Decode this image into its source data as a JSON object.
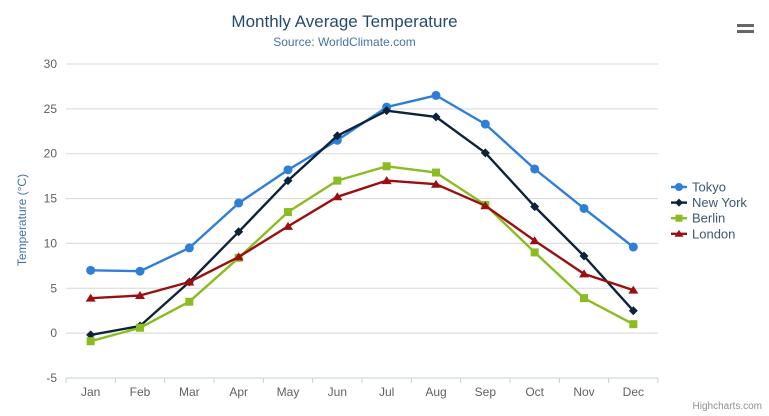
{
  "credits": "Highcharts.com",
  "icons": {
    "export_menu": "hamburger-icon"
  },
  "chart_data": {
    "type": "line",
    "title": "Monthly Average Temperature",
    "subtitle": "Source: WorldClimate.com",
    "categories": [
      "Jan",
      "Feb",
      "Mar",
      "Apr",
      "May",
      "Jun",
      "Jul",
      "Aug",
      "Sep",
      "Oct",
      "Nov",
      "Dec"
    ],
    "xlabel": "",
    "ylabel": "Temperature (°C)",
    "ylim": [
      -5,
      30
    ],
    "ytick_step": 5,
    "grid": true,
    "legend_position": "right",
    "series": [
      {
        "name": "Tokyo",
        "color": "#2f7ed8",
        "marker": "circle",
        "values": [
          7.0,
          6.9,
          9.5,
          14.5,
          18.2,
          21.5,
          25.2,
          26.5,
          23.3,
          18.3,
          13.9,
          9.6
        ]
      },
      {
        "name": "New York",
        "color": "#0d233a",
        "marker": "diamond",
        "values": [
          -0.2,
          0.8,
          5.7,
          11.3,
          17.0,
          22.0,
          24.8,
          24.1,
          20.1,
          14.1,
          8.6,
          2.5
        ]
      },
      {
        "name": "Berlin",
        "color": "#8bbc21",
        "marker": "square",
        "values": [
          -0.9,
          0.6,
          3.5,
          8.4,
          13.5,
          17.0,
          18.6,
          17.9,
          14.3,
          9.0,
          3.9,
          1.0
        ]
      },
      {
        "name": "London",
        "color": "#9a1010",
        "marker": "triangle",
        "values": [
          3.9,
          4.2,
          5.7,
          8.5,
          11.9,
          15.2,
          17.0,
          16.6,
          14.2,
          10.3,
          6.6,
          4.8
        ]
      }
    ]
  }
}
